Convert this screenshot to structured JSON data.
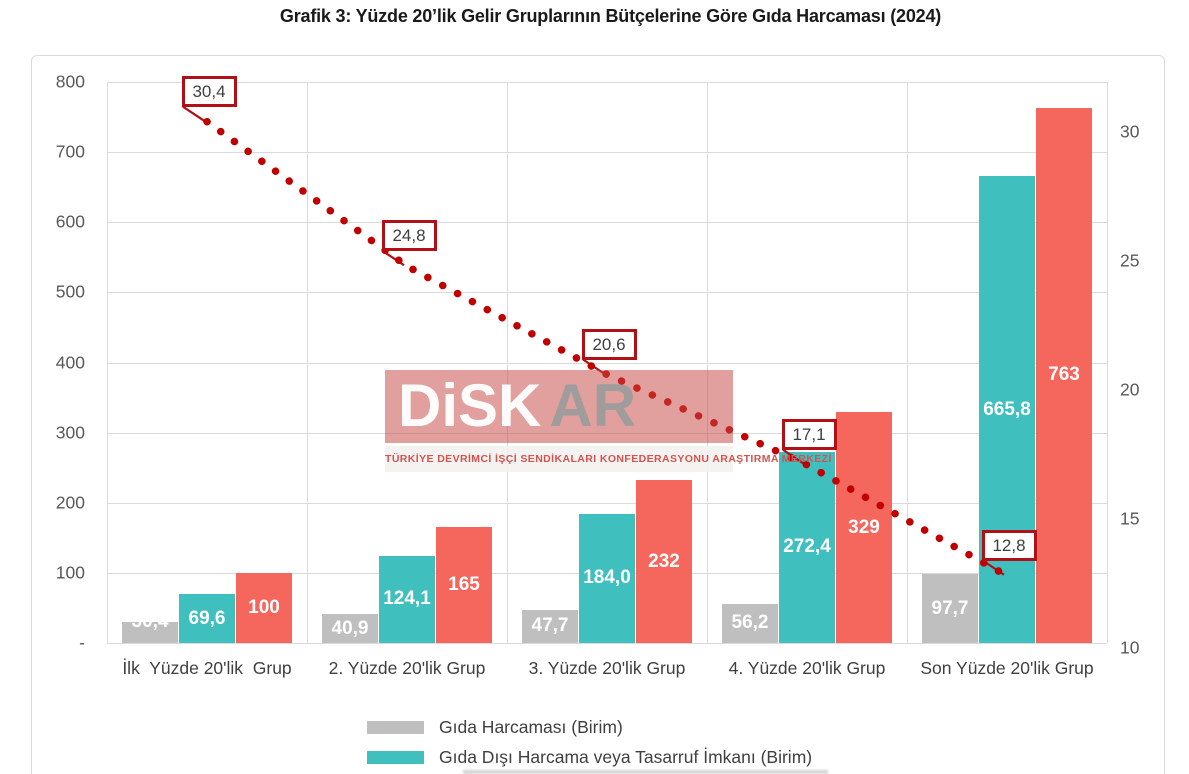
{
  "title": "Grafik 3: Yüzde 20’lik Gelir Gruplarının Bütçelerine Göre Gıda Harcaması (2024)",
  "watermark": {
    "logo_main": "DiSK",
    "logo_suffix": "AR",
    "subtitle": "TÜRKİYE DEVRİMCİ İŞÇİ SENDİKALARI KONFEDERASYONU ARAŞTIRMA MERKEZİ"
  },
  "colors": {
    "bar_food": "#bfbfbf",
    "bar_nonfood": "#40bfbf",
    "bar_total": "#f5665d",
    "line": "#c00000",
    "annotation_border": "#b01116",
    "gridline": "#dadada",
    "tick_text": "#595959",
    "category_text": "#3f3f3f"
  },
  "chart_data": {
    "type": "bar",
    "subtype": "combo-bar-line-dual-axis",
    "categories": [
      "İlk  Yüzde 20'lik  Grup",
      "2. Yüzde 20'lik Grup",
      "3. Yüzde 20'lik Grup",
      "4. Yüzde 20'lik Grup",
      "Son Yüzde 20'lik Grup"
    ],
    "series": [
      {
        "name": "Gıda Harcaması (Birim)",
        "type": "bar",
        "color": "#bfbfbf",
        "values": [
          30.4,
          40.9,
          47.7,
          56.2,
          97.7
        ],
        "labels": [
          "30,4",
          "40,9",
          "47,7",
          "56,2",
          "97,7"
        ]
      },
      {
        "name": "Gıda Dışı Harcama veya Tasarruf İmkanı (Birim)",
        "type": "bar",
        "color": "#40bfbf",
        "values": [
          69.6,
          124.1,
          184.0,
          272.4,
          665.8
        ],
        "labels": [
          "69,6",
          "124,1",
          "184,0",
          "272,4",
          "665,8"
        ]
      },
      {
        "name": "",
        "type": "bar",
        "color": "#f5665d",
        "values": [
          100,
          165,
          232,
          329,
          763
        ],
        "labels": [
          "100",
          "165",
          "232",
          "329",
          "763"
        ]
      },
      {
        "name": "",
        "type": "line",
        "style": "dotted",
        "axis": "right",
        "color": "#c00000",
        "values": [
          30.4,
          24.8,
          20.6,
          17.1,
          12.8
        ],
        "labels": [
          "30,4",
          "24,8",
          "20,6",
          "17,1",
          "12,8"
        ]
      }
    ],
    "left_axis": {
      "min": 0,
      "max": 800,
      "step": 100,
      "tick_labels": [
        "800",
        "700",
        "600",
        "500",
        "400",
        "300",
        "200",
        "100",
        "-"
      ]
    },
    "right_axis": {
      "min": 10,
      "max": 30,
      "step": 5,
      "tick_labels": [
        "30",
        "25",
        "20",
        "15",
        "10"
      ]
    },
    "grid": true,
    "legend_position": "bottom",
    "legend": [
      {
        "label": "Gıda Harcaması (Birim)",
        "color": "#bfbfbf"
      },
      {
        "label": "Gıda Dışı Harcama veya Tasarruf İmkanı (Birim)",
        "color": "#40bfbf"
      }
    ]
  }
}
